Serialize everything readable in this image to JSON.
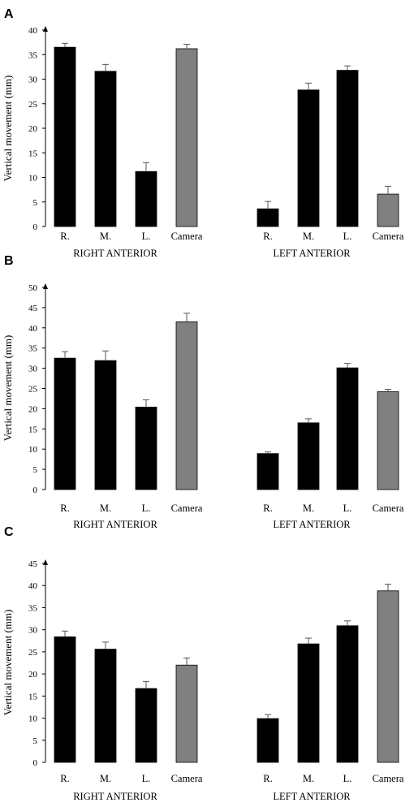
{
  "chart_data": [
    {
      "panel": "A",
      "type": "bar",
      "ylabel": "Vertical movement (mm)",
      "ylim": [
        0,
        40
      ],
      "yticks": [
        0,
        5,
        10,
        15,
        20,
        25,
        30,
        35,
        40
      ],
      "groups": [
        {
          "label": "RIGHT ANTERIOR",
          "categories": [
            "R.",
            "M.",
            "L.",
            "Camera"
          ],
          "values": [
            36.5,
            31.6,
            11.2,
            36.2
          ],
          "errors": [
            0.8,
            1.4,
            1.8,
            0.9
          ]
        },
        {
          "label": "LEFT ANTERIOR",
          "categories": [
            "R.",
            "M.",
            "L.",
            "Camera"
          ],
          "values": [
            3.6,
            27.8,
            31.8,
            6.6
          ],
          "errors": [
            1.5,
            1.4,
            0.9,
            1.6
          ]
        }
      ],
      "colors": {
        "electrode": "#000000",
        "camera": "#808080"
      },
      "grid": false
    },
    {
      "panel": "B",
      "type": "bar",
      "ylabel": "Vertical movement (mm)",
      "ylim": [
        0,
        50
      ],
      "yticks": [
        0,
        5,
        10,
        15,
        20,
        25,
        30,
        35,
        40,
        45,
        50
      ],
      "groups": [
        {
          "label": "RIGHT ANTERIOR",
          "categories": [
            "R.",
            "M.",
            "L.",
            "Camera"
          ],
          "values": [
            32.5,
            31.9,
            20.4,
            41.5
          ],
          "errors": [
            1.6,
            2.4,
            1.8,
            2.1
          ]
        },
        {
          "label": "LEFT ANTERIOR",
          "categories": [
            "R.",
            "M.",
            "L.",
            "Camera"
          ],
          "values": [
            8.9,
            16.5,
            30.1,
            24.2
          ],
          "errors": [
            0.4,
            1.0,
            1.1,
            0.6
          ]
        }
      ],
      "colors": {
        "electrode": "#000000",
        "camera": "#808080"
      },
      "grid": false
    },
    {
      "panel": "C",
      "type": "bar",
      "ylabel": "Vertical movement (mm)",
      "ylim": [
        0,
        45
      ],
      "yticks": [
        0,
        5,
        10,
        15,
        20,
        25,
        30,
        35,
        40,
        45
      ],
      "groups": [
        {
          "label": "RIGHT ANTERIOR",
          "categories": [
            "R.",
            "M.",
            "L.",
            "Camera"
          ],
          "values": [
            28.4,
            25.6,
            16.7,
            22.0
          ],
          "errors": [
            1.3,
            1.6,
            1.6,
            1.6
          ]
        },
        {
          "label": "LEFT ANTERIOR",
          "categories": [
            "R.",
            "M.",
            "L.",
            "Camera"
          ],
          "values": [
            9.9,
            26.8,
            30.9,
            38.8
          ],
          "errors": [
            0.9,
            1.3,
            1.1,
            1.5
          ]
        }
      ],
      "colors": {
        "electrode": "#000000",
        "camera": "#808080"
      },
      "grid": false
    }
  ]
}
